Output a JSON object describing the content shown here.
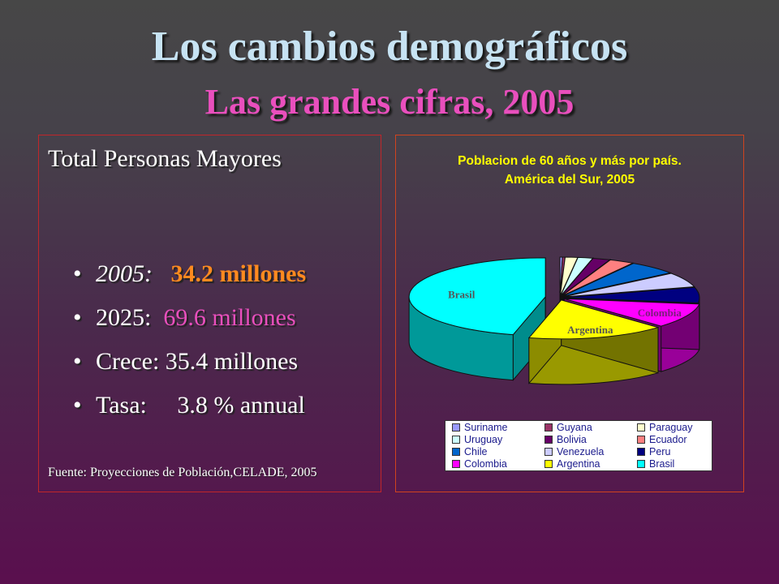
{
  "slide": {
    "title": "Los cambios demográficos",
    "subtitle": "Las grandes cifras, 2005"
  },
  "left_panel": {
    "heading": "Total Personas Mayores",
    "bullets": [
      {
        "label": "2005:   ",
        "value": "34.2 millones"
      },
      {
        "label": "2025:  ",
        "value": "69.6 millones"
      },
      {
        "label": "Crece: 35.4 millones",
        "value": ""
      },
      {
        "label": "Tasa:     3.8 % annual",
        "value": ""
      }
    ],
    "source": "Fuente: Proyecciones de Población,CELADE, 2005"
  },
  "colors": {
    "title": "#c7e3f3",
    "subtitle": "#e94fbd",
    "value_orange": "#ff8a1f",
    "chart_title": "#ffff00",
    "box_border_left": "#c0262a",
    "box_border_right": "#d0431e"
  },
  "chart_data": {
    "type": "pie",
    "title": "Poblacion de 60 años y más por país.",
    "subtitle": "América del Sur, 2005",
    "data_labels": [
      "Brasil",
      "Argentina",
      "Colombia"
    ],
    "legend_position": "bottom",
    "series": [
      {
        "name": "Suriname",
        "value": 0.1,
        "color": "#9999ff"
      },
      {
        "name": "Guyana",
        "value": 0.1,
        "color": "#993366"
      },
      {
        "name": "Paraguay",
        "value": 0.5,
        "color": "#ffffcc"
      },
      {
        "name": "Uruguay",
        "value": 0.6,
        "color": "#ccffff"
      },
      {
        "name": "Bolivia",
        "value": 0.7,
        "color": "#660066"
      },
      {
        "name": "Ecuador",
        "value": 1.0,
        "color": "#ff8080"
      },
      {
        "name": "Chile",
        "value": 2.0,
        "color": "#0066cc"
      },
      {
        "name": "Venezuela",
        "value": 2.1,
        "color": "#ccccff"
      },
      {
        "name": "Peru",
        "value": 2.2,
        "color": "#000080"
      },
      {
        "name": "Colombia",
        "value": 3.5,
        "color": "#ff00ff"
      },
      {
        "name": "Argentina",
        "value": 5.6,
        "color": "#ffff00"
      },
      {
        "name": "Brasil",
        "value": 15.8,
        "color": "#00ffff"
      }
    ]
  }
}
